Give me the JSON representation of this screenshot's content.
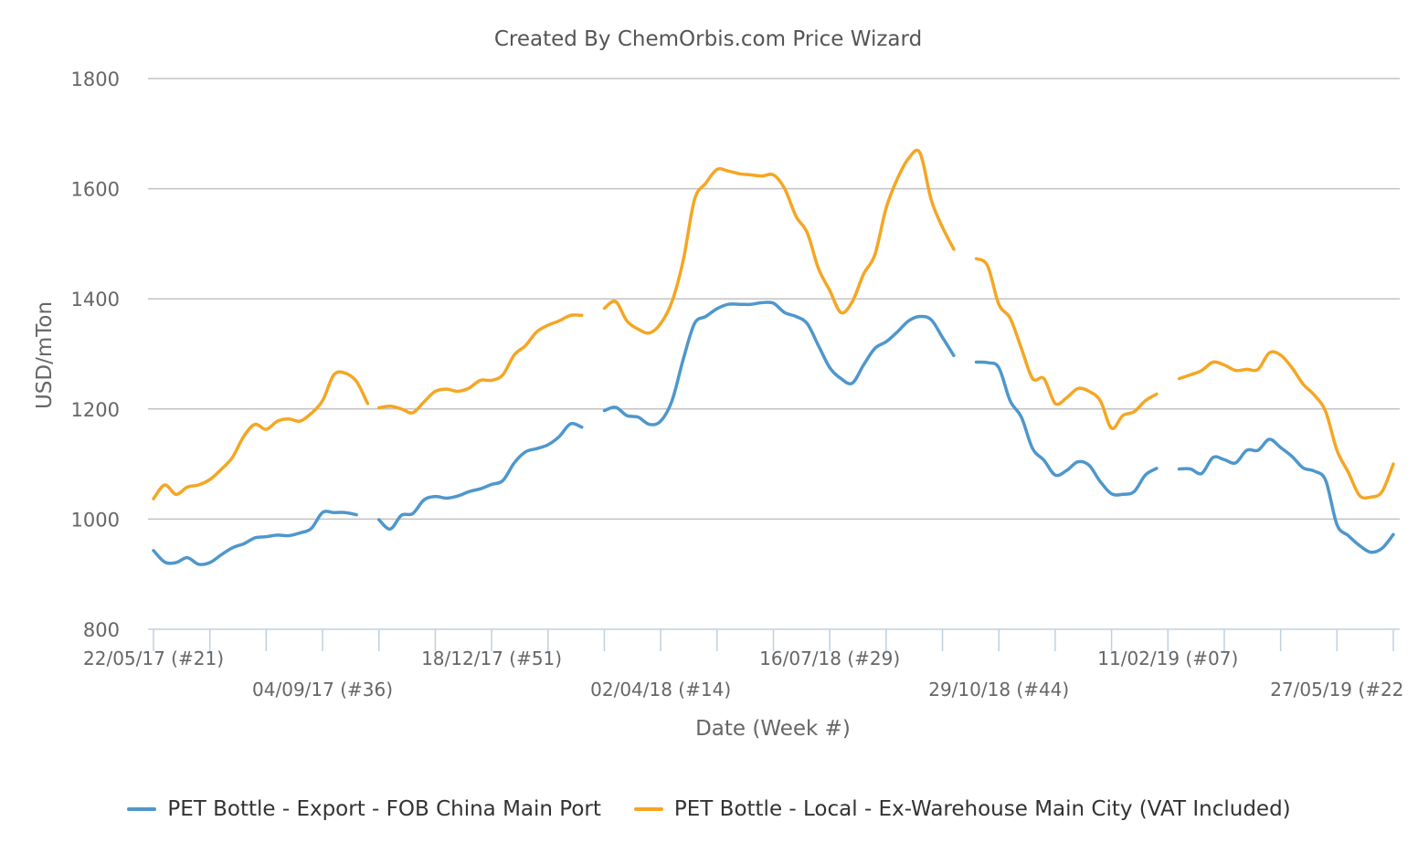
{
  "chart_data": {
    "type": "line",
    "title": "Created By ChemOrbis.com Price Wizard",
    "xlabel": "Date (Week #)",
    "ylabel": "USD/mTon",
    "ylim": [
      800,
      1800
    ],
    "yticks": [
      800,
      1000,
      1200,
      1400,
      1600,
      1800
    ],
    "xlim": [
      "2017-05-22",
      "2019-07-01"
    ],
    "x_tick_labels": [
      {
        "date": "2017-05-22",
        "label": "22/05/17 (#21)",
        "row": 1
      },
      {
        "date": "2017-09-04",
        "label": "04/09/17 (#36)",
        "row": 2
      },
      {
        "date": "2017-12-18",
        "label": "18/12/17 (#51)",
        "row": 1
      },
      {
        "date": "2018-04-02",
        "label": "02/04/18 (#14)",
        "row": 2
      },
      {
        "date": "2018-07-16",
        "label": "16/07/18 (#29)",
        "row": 1
      },
      {
        "date": "2018-10-29",
        "label": "29/10/18 (#44)",
        "row": 2
      },
      {
        "date": "2019-02-11",
        "label": "11/02/19 (#07)",
        "row": 1
      },
      {
        "date": "2019-05-27",
        "label": "27/05/19 (#22",
        "row": 2
      }
    ],
    "grid": true,
    "legend_position": "bottom",
    "series": [
      {
        "name": "PET Bottle - Export - FOB China Main Port",
        "color": "#4e97cc",
        "segments": [
          [
            [
              "2017-05-22",
              943
            ],
            [
              "2017-05-29",
              922
            ],
            [
              "2017-06-05",
              921
            ],
            [
              "2017-06-12",
              930
            ],
            [
              "2017-06-19",
              918
            ],
            [
              "2017-06-26",
              921
            ],
            [
              "2017-07-03",
              935
            ],
            [
              "2017-07-10",
              948
            ],
            [
              "2017-07-17",
              955
            ],
            [
              "2017-07-24",
              966
            ],
            [
              "2017-07-31",
              968
            ],
            [
              "2017-08-07",
              971
            ],
            [
              "2017-08-14",
              970
            ],
            [
              "2017-08-21",
              975
            ],
            [
              "2017-08-28",
              983
            ],
            [
              "2017-09-04",
              1012
            ],
            [
              "2017-09-11",
              1012
            ],
            [
              "2017-09-18",
              1012
            ],
            [
              "2017-09-25",
              1008
            ]
          ],
          [
            [
              "2017-10-09",
              999
            ],
            [
              "2017-10-16",
              982
            ],
            [
              "2017-10-23",
              1007
            ],
            [
              "2017-10-30",
              1010
            ],
            [
              "2017-11-06",
              1035
            ],
            [
              "2017-11-13",
              1041
            ],
            [
              "2017-11-20",
              1038
            ],
            [
              "2017-11-27",
              1042
            ],
            [
              "2017-12-04",
              1050
            ],
            [
              "2017-12-11",
              1055
            ],
            [
              "2017-12-18",
              1063
            ],
            [
              "2017-12-25",
              1070
            ],
            [
              "2018-01-01",
              1102
            ],
            [
              "2018-01-08",
              1122
            ],
            [
              "2018-01-15",
              1128
            ],
            [
              "2018-01-22",
              1135
            ],
            [
              "2018-01-29",
              1150
            ],
            [
              "2018-02-05",
              1173
            ],
            [
              "2018-02-12",
              1167
            ]
          ],
          [
            [
              "2018-02-26",
              1197
            ],
            [
              "2018-03-05",
              1203
            ],
            [
              "2018-03-12",
              1188
            ],
            [
              "2018-03-19",
              1185
            ],
            [
              "2018-03-26",
              1172
            ],
            [
              "2018-04-02",
              1178
            ],
            [
              "2018-04-09",
              1215
            ],
            [
              "2018-04-16",
              1290
            ],
            [
              "2018-04-23",
              1355
            ],
            [
              "2018-04-30",
              1368
            ],
            [
              "2018-05-07",
              1382
            ],
            [
              "2018-05-14",
              1390
            ],
            [
              "2018-05-21",
              1390
            ],
            [
              "2018-05-28",
              1390
            ],
            [
              "2018-06-04",
              1393
            ],
            [
              "2018-06-11",
              1392
            ],
            [
              "2018-06-18",
              1375
            ],
            [
              "2018-06-25",
              1368
            ],
            [
              "2018-07-02",
              1355
            ],
            [
              "2018-07-09",
              1315
            ],
            [
              "2018-07-16",
              1275
            ],
            [
              "2018-07-23",
              1255
            ],
            [
              "2018-07-30",
              1247
            ],
            [
              "2018-08-06",
              1280
            ],
            [
              "2018-08-13",
              1310
            ],
            [
              "2018-08-20",
              1322
            ],
            [
              "2018-08-27",
              1340
            ],
            [
              "2018-09-03",
              1360
            ],
            [
              "2018-09-10",
              1368
            ],
            [
              "2018-09-17",
              1362
            ],
            [
              "2018-09-24",
              1330
            ],
            [
              "2018-10-01",
              1297
            ]
          ],
          [
            [
              "2018-10-15",
              1285
            ],
            [
              "2018-10-22",
              1284
            ],
            [
              "2018-10-29",
              1275
            ],
            [
              "2018-11-05",
              1215
            ],
            [
              "2018-11-12",
              1185
            ],
            [
              "2018-11-19",
              1128
            ],
            [
              "2018-11-26",
              1107
            ],
            [
              "2018-12-03",
              1080
            ],
            [
              "2018-12-10",
              1088
            ],
            [
              "2018-12-17",
              1104
            ],
            [
              "2018-12-24",
              1098
            ],
            [
              "2018-12-31",
              1068
            ],
            [
              "2019-01-07",
              1046
            ],
            [
              "2019-01-14",
              1045
            ],
            [
              "2019-01-21",
              1050
            ],
            [
              "2019-01-28",
              1080
            ],
            [
              "2019-02-04",
              1092
            ]
          ],
          [
            [
              "2019-02-18",
              1091
            ],
            [
              "2019-02-25",
              1091
            ],
            [
              "2019-03-04",
              1083
            ],
            [
              "2019-03-11",
              1112
            ],
            [
              "2019-03-18",
              1108
            ],
            [
              "2019-03-25",
              1102
            ],
            [
              "2019-04-01",
              1125
            ],
            [
              "2019-04-08",
              1125
            ],
            [
              "2019-04-15",
              1145
            ],
            [
              "2019-04-22",
              1130
            ],
            [
              "2019-04-29",
              1114
            ],
            [
              "2019-05-06",
              1093
            ],
            [
              "2019-05-13",
              1087
            ],
            [
              "2019-05-20",
              1070
            ],
            [
              "2019-05-27",
              990
            ],
            [
              "2019-06-03",
              970
            ],
            [
              "2019-06-10",
              952
            ],
            [
              "2019-06-17",
              940
            ],
            [
              "2019-06-24",
              947
            ],
            [
              "2019-07-01",
              972
            ]
          ]
        ]
      },
      {
        "name": "PET Bottle - Local - Ex-Warehouse Main City (VAT Included)",
        "color": "#f5a623",
        "segments": [
          [
            [
              "2017-05-22",
              1037
            ],
            [
              "2017-05-29",
              1062
            ],
            [
              "2017-06-05",
              1045
            ],
            [
              "2017-06-12",
              1058
            ],
            [
              "2017-06-19",
              1062
            ],
            [
              "2017-06-26",
              1072
            ],
            [
              "2017-07-03",
              1090
            ],
            [
              "2017-07-10",
              1112
            ],
            [
              "2017-07-17",
              1150
            ],
            [
              "2017-07-24",
              1172
            ],
            [
              "2017-07-31",
              1163
            ],
            [
              "2017-08-07",
              1178
            ],
            [
              "2017-08-14",
              1182
            ],
            [
              "2017-08-21",
              1178
            ],
            [
              "2017-08-28",
              1192
            ],
            [
              "2017-09-04",
              1215
            ],
            [
              "2017-09-11",
              1262
            ],
            [
              "2017-09-18",
              1265
            ],
            [
              "2017-09-25",
              1250
            ],
            [
              "2017-10-02",
              1210
            ]
          ],
          [
            [
              "2017-10-09",
              1202
            ],
            [
              "2017-10-16",
              1205
            ],
            [
              "2017-10-23",
              1200
            ],
            [
              "2017-10-30",
              1193
            ],
            [
              "2017-11-06",
              1213
            ],
            [
              "2017-11-13",
              1232
            ],
            [
              "2017-11-20",
              1236
            ],
            [
              "2017-11-27",
              1232
            ],
            [
              "2017-12-04",
              1238
            ],
            [
              "2017-12-11",
              1252
            ],
            [
              "2017-12-18",
              1252
            ],
            [
              "2017-12-25",
              1262
            ],
            [
              "2018-01-01",
              1298
            ],
            [
              "2018-01-08",
              1315
            ],
            [
              "2018-01-15",
              1340
            ],
            [
              "2018-01-22",
              1352
            ],
            [
              "2018-01-29",
              1360
            ],
            [
              "2018-02-05",
              1370
            ],
            [
              "2018-02-12",
              1370
            ]
          ],
          [
            [
              "2018-02-26",
              1383
            ],
            [
              "2018-03-05",
              1395
            ],
            [
              "2018-03-12",
              1360
            ],
            [
              "2018-03-19",
              1345
            ],
            [
              "2018-03-26",
              1338
            ],
            [
              "2018-04-02",
              1355
            ],
            [
              "2018-04-09",
              1395
            ],
            [
              "2018-04-16",
              1470
            ],
            [
              "2018-04-23",
              1580
            ],
            [
              "2018-04-30",
              1610
            ],
            [
              "2018-05-07",
              1635
            ],
            [
              "2018-05-14",
              1632
            ],
            [
              "2018-05-21",
              1627
            ],
            [
              "2018-05-28",
              1625
            ],
            [
              "2018-06-04",
              1623
            ],
            [
              "2018-06-11",
              1625
            ],
            [
              "2018-06-18",
              1600
            ],
            [
              "2018-06-25",
              1550
            ],
            [
              "2018-07-02",
              1520
            ],
            [
              "2018-07-09",
              1455
            ],
            [
              "2018-07-16",
              1415
            ],
            [
              "2018-07-23",
              1375
            ],
            [
              "2018-07-30",
              1395
            ],
            [
              "2018-08-06",
              1445
            ],
            [
              "2018-08-13",
              1480
            ],
            [
              "2018-08-20",
              1565
            ],
            [
              "2018-08-27",
              1618
            ],
            [
              "2018-09-03",
              1655
            ],
            [
              "2018-09-10",
              1665
            ],
            [
              "2018-09-17",
              1580
            ],
            [
              "2018-09-24",
              1530
            ],
            [
              "2018-10-01",
              1490
            ]
          ],
          [
            [
              "2018-10-15",
              1473
            ],
            [
              "2018-10-22",
              1460
            ],
            [
              "2018-10-29",
              1390
            ],
            [
              "2018-11-05",
              1365
            ],
            [
              "2018-11-12",
              1310
            ],
            [
              "2018-11-19",
              1255
            ],
            [
              "2018-11-26",
              1255
            ],
            [
              "2018-12-03",
              1210
            ],
            [
              "2018-12-10",
              1220
            ],
            [
              "2018-12-17",
              1237
            ],
            [
              "2018-12-24",
              1232
            ],
            [
              "2018-12-31",
              1215
            ],
            [
              "2019-01-07",
              1165
            ],
            [
              "2019-01-14",
              1188
            ],
            [
              "2019-01-21",
              1195
            ],
            [
              "2019-01-28",
              1215
            ],
            [
              "2019-02-04",
              1227
            ]
          ],
          [
            [
              "2019-02-18",
              1255
            ],
            [
              "2019-02-25",
              1262
            ],
            [
              "2019-03-04",
              1270
            ],
            [
              "2019-03-11",
              1285
            ],
            [
              "2019-03-18",
              1280
            ],
            [
              "2019-03-25",
              1270
            ],
            [
              "2019-04-01",
              1272
            ],
            [
              "2019-04-08",
              1272
            ],
            [
              "2019-04-15",
              1302
            ],
            [
              "2019-04-22",
              1298
            ],
            [
              "2019-04-29",
              1275
            ],
            [
              "2019-05-06",
              1245
            ],
            [
              "2019-05-13",
              1225
            ],
            [
              "2019-05-20",
              1195
            ],
            [
              "2019-05-27",
              1125
            ],
            [
              "2019-06-03",
              1085
            ],
            [
              "2019-06-10",
              1043
            ],
            [
              "2019-06-17",
              1040
            ],
            [
              "2019-06-24",
              1050
            ],
            [
              "2019-07-01",
              1100
            ]
          ]
        ]
      }
    ]
  }
}
